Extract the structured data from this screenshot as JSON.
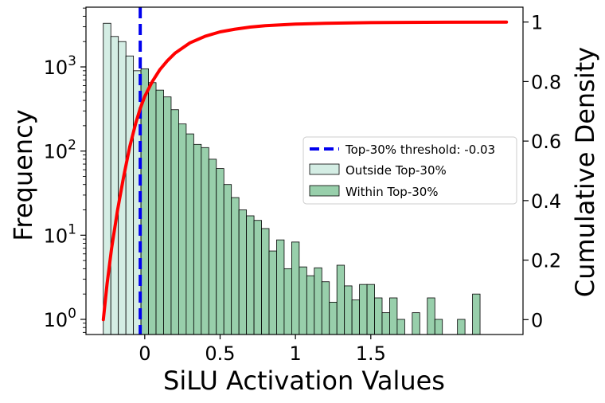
{
  "chart_data": {
    "type": "histogram",
    "xlabel": "SiLU Activation Values",
    "ylabel": "Frequency",
    "y2label": "Cumulative Density",
    "yscale": "log",
    "xlim": [
      -0.39,
      2.51
    ],
    "ylim_log10": [
      -0.18,
      3.71
    ],
    "y2lim": [
      -0.05,
      1.05
    ],
    "x_ticks": [
      {
        "value": 0,
        "label": "0"
      },
      {
        "value": 0.5,
        "label": "0.5"
      },
      {
        "value": 1,
        "label": "1"
      },
      {
        "value": 1.5,
        "label": "1.5"
      }
    ],
    "y_ticks": [
      {
        "exp": 0,
        "label": "10",
        "sup": "0"
      },
      {
        "exp": 1,
        "label": "10",
        "sup": "1"
      },
      {
        "exp": 2,
        "label": "10",
        "sup": "2"
      },
      {
        "exp": 3,
        "label": "10",
        "sup": "3"
      }
    ],
    "y2_ticks": [
      {
        "value": 0,
        "label": "0"
      },
      {
        "value": 0.2,
        "label": "0.2"
      },
      {
        "value": 0.4,
        "label": "0.4"
      },
      {
        "value": 0.6,
        "label": "0.6"
      },
      {
        "value": 0.8,
        "label": "0.8"
      },
      {
        "value": 1,
        "label": "1"
      }
    ],
    "threshold": {
      "value": -0.03,
      "label": "Top-30% threshold: -0.03",
      "color": "#0000ee"
    },
    "bin_start": -0.275,
    "bin_width": 0.05,
    "outside_series": {
      "name": "Outside Top-30%",
      "color": "#d4ede4",
      "counts": [
        3300,
        2300,
        2000,
        1350,
        900
      ]
    },
    "within_series": {
      "name": "Within Top-30%",
      "color": "#98cfab",
      "counts": [
        950,
        650,
        530,
        440,
        310,
        210,
        160,
        120,
        110,
        80,
        62,
        40,
        28,
        20,
        17,
        15,
        12,
        6.5,
        8.8,
        4,
        8.3,
        4.2,
        3.3,
        4.1,
        2.8,
        1.6,
        4.4,
        2.5,
        1.7,
        2.6,
        2.6,
        1.8,
        1.2,
        1.8,
        1.0,
        0,
        1.2,
        0,
        1.8,
        1.0,
        0,
        0,
        1.0,
        0,
        2.0
      ]
    },
    "cdf_series": {
      "name": "Cumulative Density",
      "color": "#ff0000",
      "x": [
        -0.275,
        -0.25,
        -0.22,
        -0.18,
        -0.14,
        -0.1,
        -0.06,
        -0.03,
        0.0,
        0.05,
        0.1,
        0.15,
        0.2,
        0.3,
        0.4,
        0.5,
        0.6,
        0.7,
        0.8,
        1.0,
        1.2,
        1.5,
        2.0,
        2.4
      ],
      "y": [
        0.0,
        0.12,
        0.24,
        0.37,
        0.48,
        0.58,
        0.66,
        0.71,
        0.75,
        0.8,
        0.84,
        0.87,
        0.895,
        0.93,
        0.952,
        0.967,
        0.976,
        0.983,
        0.988,
        0.993,
        0.996,
        0.998,
        0.9995,
        1.0
      ]
    },
    "legend_position": "center-right"
  }
}
